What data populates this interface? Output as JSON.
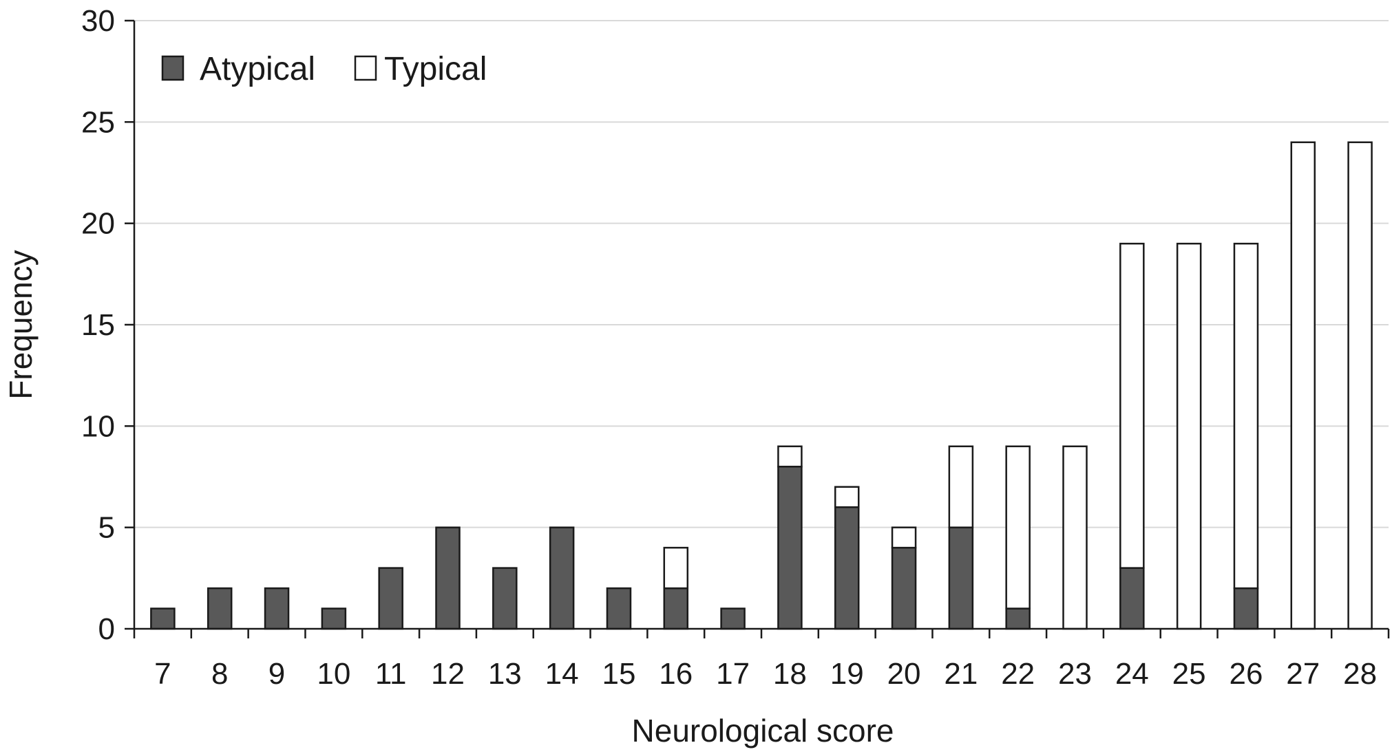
{
  "chart_data": {
    "type": "bar",
    "stacked": true,
    "title": "",
    "xlabel": "Neurological score",
    "ylabel": "Frequency",
    "ylim": [
      0,
      30
    ],
    "yticks": [
      0,
      5,
      10,
      15,
      20,
      25,
      30
    ],
    "grid": "horizontal",
    "legend": "top-left",
    "categories": [
      "7",
      "8",
      "9",
      "10",
      "11",
      "12",
      "13",
      "14",
      "15",
      "16",
      "17",
      "18",
      "19",
      "20",
      "21",
      "22",
      "23",
      "24",
      "25",
      "26",
      "27",
      "28"
    ],
    "series": [
      {
        "name": "Atypical",
        "color": "#595959",
        "values": [
          1,
          2,
          2,
          1,
          3,
          5,
          3,
          5,
          2,
          2,
          1,
          8,
          6,
          4,
          5,
          1,
          0,
          3,
          0,
          2,
          0,
          0
        ]
      },
      {
        "name": "Typical",
        "color": "#ffffff",
        "values": [
          0,
          0,
          0,
          0,
          0,
          0,
          0,
          0,
          0,
          2,
          0,
          1,
          1,
          1,
          4,
          8,
          9,
          16,
          19,
          17,
          24,
          24
        ]
      }
    ]
  }
}
